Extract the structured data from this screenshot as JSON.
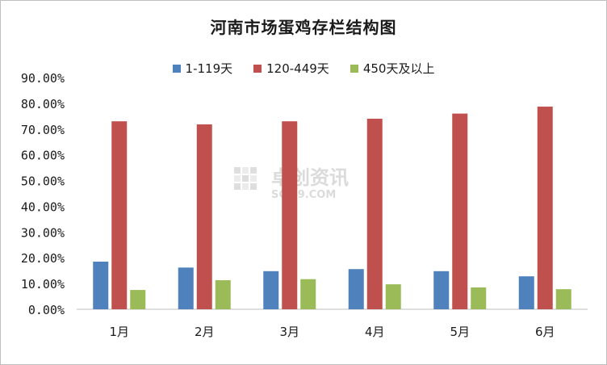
{
  "chart_data": {
    "type": "bar",
    "title": "河南市场蛋鸡存栏结构图",
    "xlabel": "",
    "ylabel": "",
    "categories": [
      "1月",
      "2月",
      "3月",
      "4月",
      "5月",
      "6月"
    ],
    "series": [
      {
        "name": "1-119天",
        "color": "#4f81bd",
        "values": [
          18.5,
          16.2,
          14.8,
          15.6,
          14.8,
          12.8
        ]
      },
      {
        "name": "120-449天",
        "color": "#c0504d",
        "values": [
          73.0,
          71.8,
          73.0,
          74.0,
          76.0,
          78.7
        ]
      },
      {
        "name": "450天及以上",
        "color": "#9bbb59",
        "values": [
          7.5,
          11.3,
          11.7,
          9.7,
          8.5,
          7.8
        ]
      }
    ],
    "ylim": [
      0,
      90
    ],
    "yticks": [
      "0.00%",
      "10.00%",
      "20.00%",
      "30.00%",
      "40.00%",
      "50.00%",
      "60.00%",
      "70.00%",
      "80.00%",
      "90.00%"
    ],
    "grid": false,
    "legend_position": "top"
  },
  "watermark": {
    "cn": "卓创资讯",
    "en": "SCI99.COM"
  }
}
